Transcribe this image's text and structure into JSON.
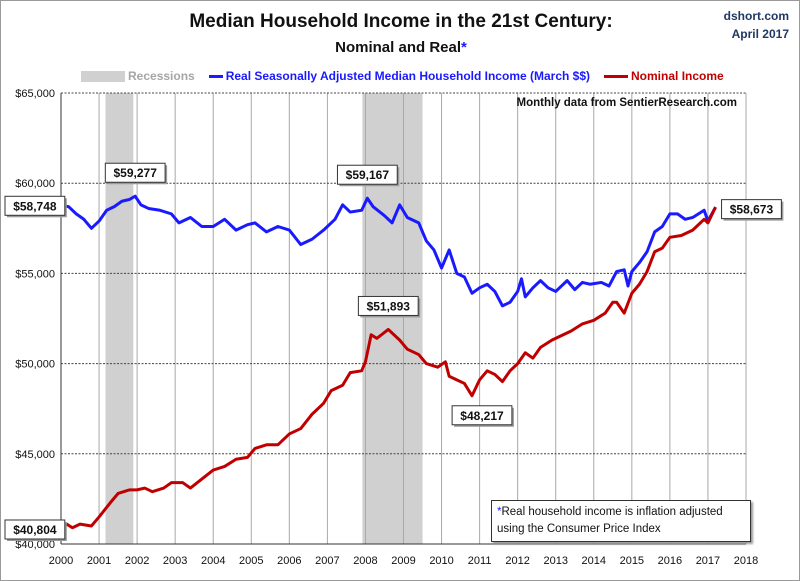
{
  "header": {
    "title": "Median Household Income in the 21st Century:",
    "subtitle": "Nominal and Real",
    "subtitle_marker": "*",
    "source": "dshort.com",
    "date": "April 2017"
  },
  "notes": {
    "monthly": "Monthly data from SentierResearch.com",
    "marker": "*",
    "footnote_line1": "Real household  income is inflation adjusted",
    "footnote_line2": "using  the Consumer Price Index"
  },
  "chart_data": {
    "type": "line",
    "title": "Median Household Income in the 21st Century: Nominal and Real*",
    "xlim": [
      2000,
      2018
    ],
    "ylim": [
      40000,
      65000
    ],
    "x_ticks": [
      "2000",
      "2001",
      "2002",
      "2003",
      "2004",
      "2005",
      "2006",
      "2007",
      "2008",
      "2009",
      "2010",
      "2011",
      "2012",
      "2013",
      "2014",
      "2015",
      "2016",
      "2017",
      "2018"
    ],
    "y_ticks": [
      "$40,000",
      "$45,000",
      "$50,000",
      "$55,000",
      "$60,000",
      "$65,000"
    ],
    "y_tick_values": [
      40000,
      45000,
      50000,
      55000,
      60000,
      65000
    ],
    "grid": true,
    "legend_position": "top",
    "recessions": {
      "name": "Recessions",
      "color": "#d0d0d0",
      "periods": [
        [
          2001.17,
          2001.9
        ],
        [
          2007.92,
          2009.5
        ]
      ]
    },
    "series": [
      {
        "name": "Real Seasonally Adjusted Median Household Income (March $$)",
        "color": "#1a1aff",
        "points": [
          [
            2000.0,
            58748
          ],
          [
            2000.2,
            58700
          ],
          [
            2000.4,
            58300
          ],
          [
            2000.6,
            58000
          ],
          [
            2000.8,
            57500
          ],
          [
            2001.0,
            57900
          ],
          [
            2001.2,
            58500
          ],
          [
            2001.4,
            58700
          ],
          [
            2001.6,
            59000
          ],
          [
            2001.8,
            59100
          ],
          [
            2001.95,
            59277
          ],
          [
            2002.1,
            58800
          ],
          [
            2002.3,
            58600
          ],
          [
            2002.6,
            58500
          ],
          [
            2002.9,
            58300
          ],
          [
            2003.1,
            57800
          ],
          [
            2003.4,
            58100
          ],
          [
            2003.7,
            57600
          ],
          [
            2004.0,
            57600
          ],
          [
            2004.3,
            58000
          ],
          [
            2004.6,
            57400
          ],
          [
            2004.9,
            57700
          ],
          [
            2005.1,
            57800
          ],
          [
            2005.4,
            57300
          ],
          [
            2005.7,
            57600
          ],
          [
            2006.0,
            57400
          ],
          [
            2006.3,
            56600
          ],
          [
            2006.6,
            56900
          ],
          [
            2006.9,
            57400
          ],
          [
            2007.2,
            58000
          ],
          [
            2007.4,
            58800
          ],
          [
            2007.6,
            58400
          ],
          [
            2007.9,
            58500
          ],
          [
            2008.05,
            59167
          ],
          [
            2008.2,
            58700
          ],
          [
            2008.5,
            58200
          ],
          [
            2008.7,
            57800
          ],
          [
            2008.9,
            58800
          ],
          [
            2009.1,
            58100
          ],
          [
            2009.4,
            57800
          ],
          [
            2009.6,
            56800
          ],
          [
            2009.8,
            56300
          ],
          [
            2010.0,
            55300
          ],
          [
            2010.2,
            56300
          ],
          [
            2010.4,
            55000
          ],
          [
            2010.6,
            54800
          ],
          [
            2010.8,
            53900
          ],
          [
            2011.0,
            54200
          ],
          [
            2011.2,
            54400
          ],
          [
            2011.4,
            54000
          ],
          [
            2011.6,
            53200
          ],
          [
            2011.8,
            53400
          ],
          [
            2012.0,
            54000
          ],
          [
            2012.1,
            54700
          ],
          [
            2012.2,
            53700
          ],
          [
            2012.4,
            54200
          ],
          [
            2012.6,
            54600
          ],
          [
            2012.8,
            54200
          ],
          [
            2013.0,
            54000
          ],
          [
            2013.3,
            54600
          ],
          [
            2013.5,
            54100
          ],
          [
            2013.7,
            54500
          ],
          [
            2013.9,
            54400
          ],
          [
            2014.2,
            54500
          ],
          [
            2014.4,
            54300
          ],
          [
            2014.6,
            55100
          ],
          [
            2014.8,
            55200
          ],
          [
            2014.9,
            54300
          ],
          [
            2015.0,
            55100
          ],
          [
            2015.2,
            55600
          ],
          [
            2015.4,
            56200
          ],
          [
            2015.6,
            57300
          ],
          [
            2015.8,
            57600
          ],
          [
            2016.0,
            58300
          ],
          [
            2016.2,
            58300
          ],
          [
            2016.4,
            58000
          ],
          [
            2016.6,
            58100
          ],
          [
            2016.9,
            58500
          ],
          [
            2017.0,
            57900
          ],
          [
            2017.2,
            58673
          ]
        ]
      },
      {
        "name": "Nominal Income",
        "color": "#c00000",
        "points": [
          [
            2000.0,
            40804
          ],
          [
            2000.15,
            41100
          ],
          [
            2000.3,
            40900
          ],
          [
            2000.5,
            41100
          ],
          [
            2000.8,
            41000
          ],
          [
            2001.0,
            41500
          ],
          [
            2001.3,
            42300
          ],
          [
            2001.5,
            42800
          ],
          [
            2001.8,
            43000
          ],
          [
            2002.0,
            43000
          ],
          [
            2002.2,
            43100
          ],
          [
            2002.4,
            42900
          ],
          [
            2002.7,
            43100
          ],
          [
            2002.9,
            43400
          ],
          [
            2003.2,
            43400
          ],
          [
            2003.4,
            43100
          ],
          [
            2003.7,
            43600
          ],
          [
            2004.0,
            44100
          ],
          [
            2004.3,
            44300
          ],
          [
            2004.6,
            44700
          ],
          [
            2004.9,
            44800
          ],
          [
            2005.1,
            45300
          ],
          [
            2005.4,
            45500
          ],
          [
            2005.7,
            45500
          ],
          [
            2006.0,
            46100
          ],
          [
            2006.3,
            46400
          ],
          [
            2006.6,
            47200
          ],
          [
            2006.9,
            47800
          ],
          [
            2007.1,
            48500
          ],
          [
            2007.4,
            48800
          ],
          [
            2007.6,
            49500
          ],
          [
            2007.9,
            49600
          ],
          [
            2008.0,
            50100
          ],
          [
            2008.15,
            51600
          ],
          [
            2008.3,
            51400
          ],
          [
            2008.6,
            51893
          ],
          [
            2008.9,
            51300
          ],
          [
            2009.1,
            50800
          ],
          [
            2009.4,
            50500
          ],
          [
            2009.6,
            50000
          ],
          [
            2009.9,
            49800
          ],
          [
            2010.1,
            50100
          ],
          [
            2010.2,
            49300
          ],
          [
            2010.4,
            49100
          ],
          [
            2010.6,
            48900
          ],
          [
            2010.8,
            48217
          ],
          [
            2011.0,
            49100
          ],
          [
            2011.2,
            49600
          ],
          [
            2011.4,
            49400
          ],
          [
            2011.6,
            49000
          ],
          [
            2011.8,
            49600
          ],
          [
            2012.0,
            50000
          ],
          [
            2012.2,
            50600
          ],
          [
            2012.4,
            50300
          ],
          [
            2012.6,
            50900
          ],
          [
            2012.9,
            51300
          ],
          [
            2013.1,
            51500
          ],
          [
            2013.4,
            51800
          ],
          [
            2013.7,
            52200
          ],
          [
            2014.0,
            52400
          ],
          [
            2014.3,
            52800
          ],
          [
            2014.5,
            53400
          ],
          [
            2014.6,
            53400
          ],
          [
            2014.8,
            52800
          ],
          [
            2015.0,
            53900
          ],
          [
            2015.2,
            54400
          ],
          [
            2015.4,
            55100
          ],
          [
            2015.6,
            56200
          ],
          [
            2015.8,
            56400
          ],
          [
            2016.0,
            57000
          ],
          [
            2016.3,
            57100
          ],
          [
            2016.6,
            57400
          ],
          [
            2016.9,
            58000
          ],
          [
            2017.0,
            57800
          ],
          [
            2017.2,
            58673
          ]
        ]
      }
    ],
    "annotations": [
      {
        "text": "$58,748",
        "x": 2000.0,
        "y": 58748,
        "series": "real",
        "side": "left"
      },
      {
        "text": "$59,277",
        "x": 2001.95,
        "y": 59277,
        "series": "real",
        "side": "above"
      },
      {
        "text": "$59,167",
        "x": 2008.05,
        "y": 59167,
        "series": "real",
        "side": "above"
      },
      {
        "text": "$58,673",
        "x": 2017.2,
        "y": 58673,
        "series": "both",
        "side": "right"
      },
      {
        "text": "$51,893",
        "x": 2008.6,
        "y": 51893,
        "series": "nominal",
        "side": "above"
      },
      {
        "text": "$48,217",
        "x": 2010.8,
        "y": 48217,
        "series": "nominal",
        "side": "below"
      },
      {
        "text": "$40,804",
        "x": 2000.0,
        "y": 40804,
        "series": "nominal",
        "side": "left"
      }
    ]
  }
}
